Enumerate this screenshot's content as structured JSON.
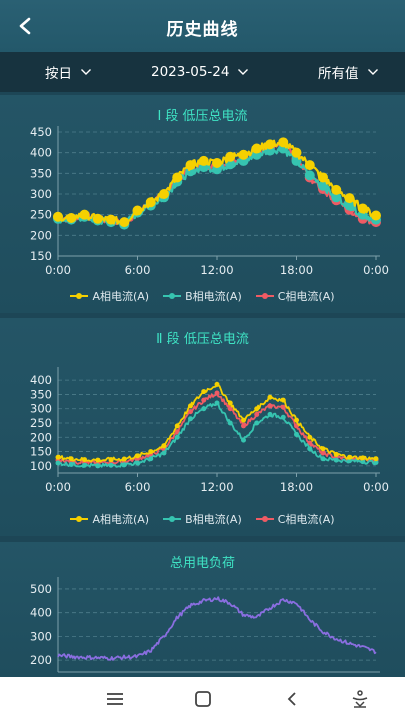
{
  "header": {
    "title": "历史曲线"
  },
  "filters": {
    "period": "按日",
    "date": "2023-05-24",
    "value_type": "所有值"
  },
  "charts": [
    {
      "title": "Ⅰ 段 低压总电流",
      "legend": [
        "A相电流(A)",
        "B相电流(A)",
        "C相电流(A)"
      ],
      "xticks": [
        "0:00",
        "6:00",
        "12:00",
        "18:00",
        "0:00"
      ],
      "yticks": [
        "450",
        "400",
        "350",
        "300",
        "250",
        "200",
        "150"
      ]
    },
    {
      "title": "Ⅱ 段 低压总电流",
      "legend": [
        "A相电流(A)",
        "B相电流(A)",
        "C相电流(A)"
      ],
      "xticks": [
        "0:00",
        "6:00",
        "12:00",
        "18:00",
        "0:00"
      ],
      "yticks": [
        "400",
        "350",
        "300",
        "250",
        "200",
        "150",
        "100"
      ]
    },
    {
      "title": "总用电负荷",
      "yticks": [
        "500",
        "400",
        "300",
        "200"
      ]
    }
  ],
  "chart_data": [
    {
      "type": "line",
      "title": "Ⅰ 段 低压总电流",
      "x": [
        0,
        1,
        2,
        3,
        4,
        5,
        6,
        7,
        8,
        9,
        10,
        11,
        12,
        13,
        14,
        15,
        16,
        17,
        18,
        19,
        20,
        21,
        22,
        23,
        24
      ],
      "xlim": [
        0,
        24
      ],
      "ylim": [
        150,
        450
      ],
      "colors": [
        "#f5d000",
        "#36c4b0",
        "#ef5b64"
      ],
      "series": [
        {
          "name": "A相电流(A)",
          "values": [
            245,
            242,
            250,
            240,
            238,
            232,
            260,
            280,
            300,
            340,
            370,
            380,
            375,
            390,
            395,
            410,
            420,
            425,
            400,
            370,
            340,
            310,
            290,
            265,
            248
          ]
        },
        {
          "name": "B相电流(A)",
          "values": [
            240,
            238,
            245,
            236,
            232,
            226,
            255,
            272,
            292,
            330,
            355,
            365,
            360,
            372,
            380,
            395,
            405,
            410,
            380,
            345,
            320,
            292,
            272,
            250,
            238
          ]
        },
        {
          "name": "C相电流(A)",
          "values": [
            242,
            240,
            248,
            238,
            235,
            228,
            258,
            275,
            296,
            335,
            360,
            370,
            366,
            380,
            385,
            400,
            412,
            418,
            385,
            340,
            312,
            285,
            262,
            240,
            232
          ]
        }
      ]
    },
    {
      "type": "line",
      "title": "Ⅱ 段 低压总电流",
      "x": [
        0,
        1,
        2,
        3,
        4,
        5,
        6,
        7,
        8,
        9,
        10,
        11,
        12,
        13,
        14,
        15,
        16,
        17,
        18,
        19,
        20,
        21,
        22,
        23,
        24
      ],
      "xlim": [
        0,
        24
      ],
      "ylim": [
        75,
        425
      ],
      "colors": [
        "#f5d000",
        "#36c4b0",
        "#ef5b64"
      ],
      "series": [
        {
          "name": "A相电流(A)",
          "values": [
            130,
            125,
            122,
            120,
            122,
            124,
            135,
            150,
            170,
            240,
            310,
            360,
            385,
            320,
            260,
            300,
            340,
            330,
            260,
            200,
            160,
            140,
            130,
            128,
            125
          ]
        },
        {
          "name": "B相电流(A)",
          "values": [
            110,
            105,
            102,
            100,
            102,
            104,
            110,
            125,
            145,
            200,
            265,
            300,
            320,
            250,
            190,
            250,
            280,
            270,
            210,
            160,
            125,
            120,
            118,
            115,
            112
          ]
        },
        {
          "name": "C相电流(A)",
          "values": [
            120,
            115,
            112,
            110,
            112,
            114,
            125,
            140,
            160,
            220,
            290,
            330,
            355,
            300,
            240,
            280,
            310,
            305,
            240,
            180,
            145,
            130,
            125,
            122,
            120
          ]
        }
      ]
    },
    {
      "type": "line",
      "title": "总用电负荷",
      "x": [
        0,
        1,
        2,
        3,
        4,
        5,
        6,
        7,
        8,
        9,
        10,
        11,
        12,
        13,
        14,
        15,
        16,
        17,
        18,
        19,
        20,
        21,
        22,
        23,
        24
      ],
      "xlim": [
        0,
        24
      ],
      "ylim": [
        150,
        525
      ],
      "colors": [
        "#8a6ee0"
      ],
      "series": [
        {
          "values": [
            220,
            215,
            212,
            210,
            208,
            212,
            215,
            240,
            300,
            380,
            430,
            450,
            460,
            440,
            390,
            380,
            420,
            455,
            440,
            370,
            320,
            290,
            270,
            255,
            235
          ]
        }
      ]
    }
  ]
}
